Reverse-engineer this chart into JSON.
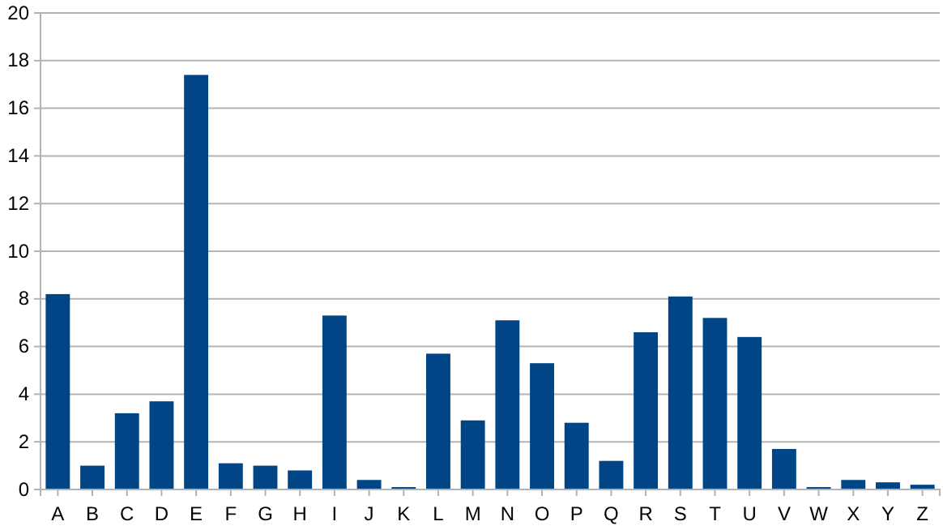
{
  "chart_data": {
    "type": "bar",
    "categories": [
      "A",
      "B",
      "C",
      "D",
      "E",
      "F",
      "G",
      "H",
      "I",
      "J",
      "K",
      "L",
      "M",
      "N",
      "O",
      "P",
      "Q",
      "R",
      "S",
      "T",
      "U",
      "V",
      "W",
      "X",
      "Y",
      "Z"
    ],
    "values": [
      8.2,
      1.0,
      3.2,
      3.7,
      17.4,
      1.1,
      1.0,
      0.8,
      7.3,
      0.4,
      0.1,
      5.7,
      2.9,
      7.1,
      5.3,
      2.8,
      1.2,
      6.6,
      8.1,
      7.2,
      6.4,
      1.7,
      0.1,
      0.4,
      0.3,
      0.2
    ],
    "color": "#004586",
    "ylim": [
      0,
      20
    ],
    "yticks": [
      0,
      2,
      4,
      6,
      8,
      10,
      12,
      14,
      16,
      18,
      20
    ],
    "grid": "y"
  }
}
